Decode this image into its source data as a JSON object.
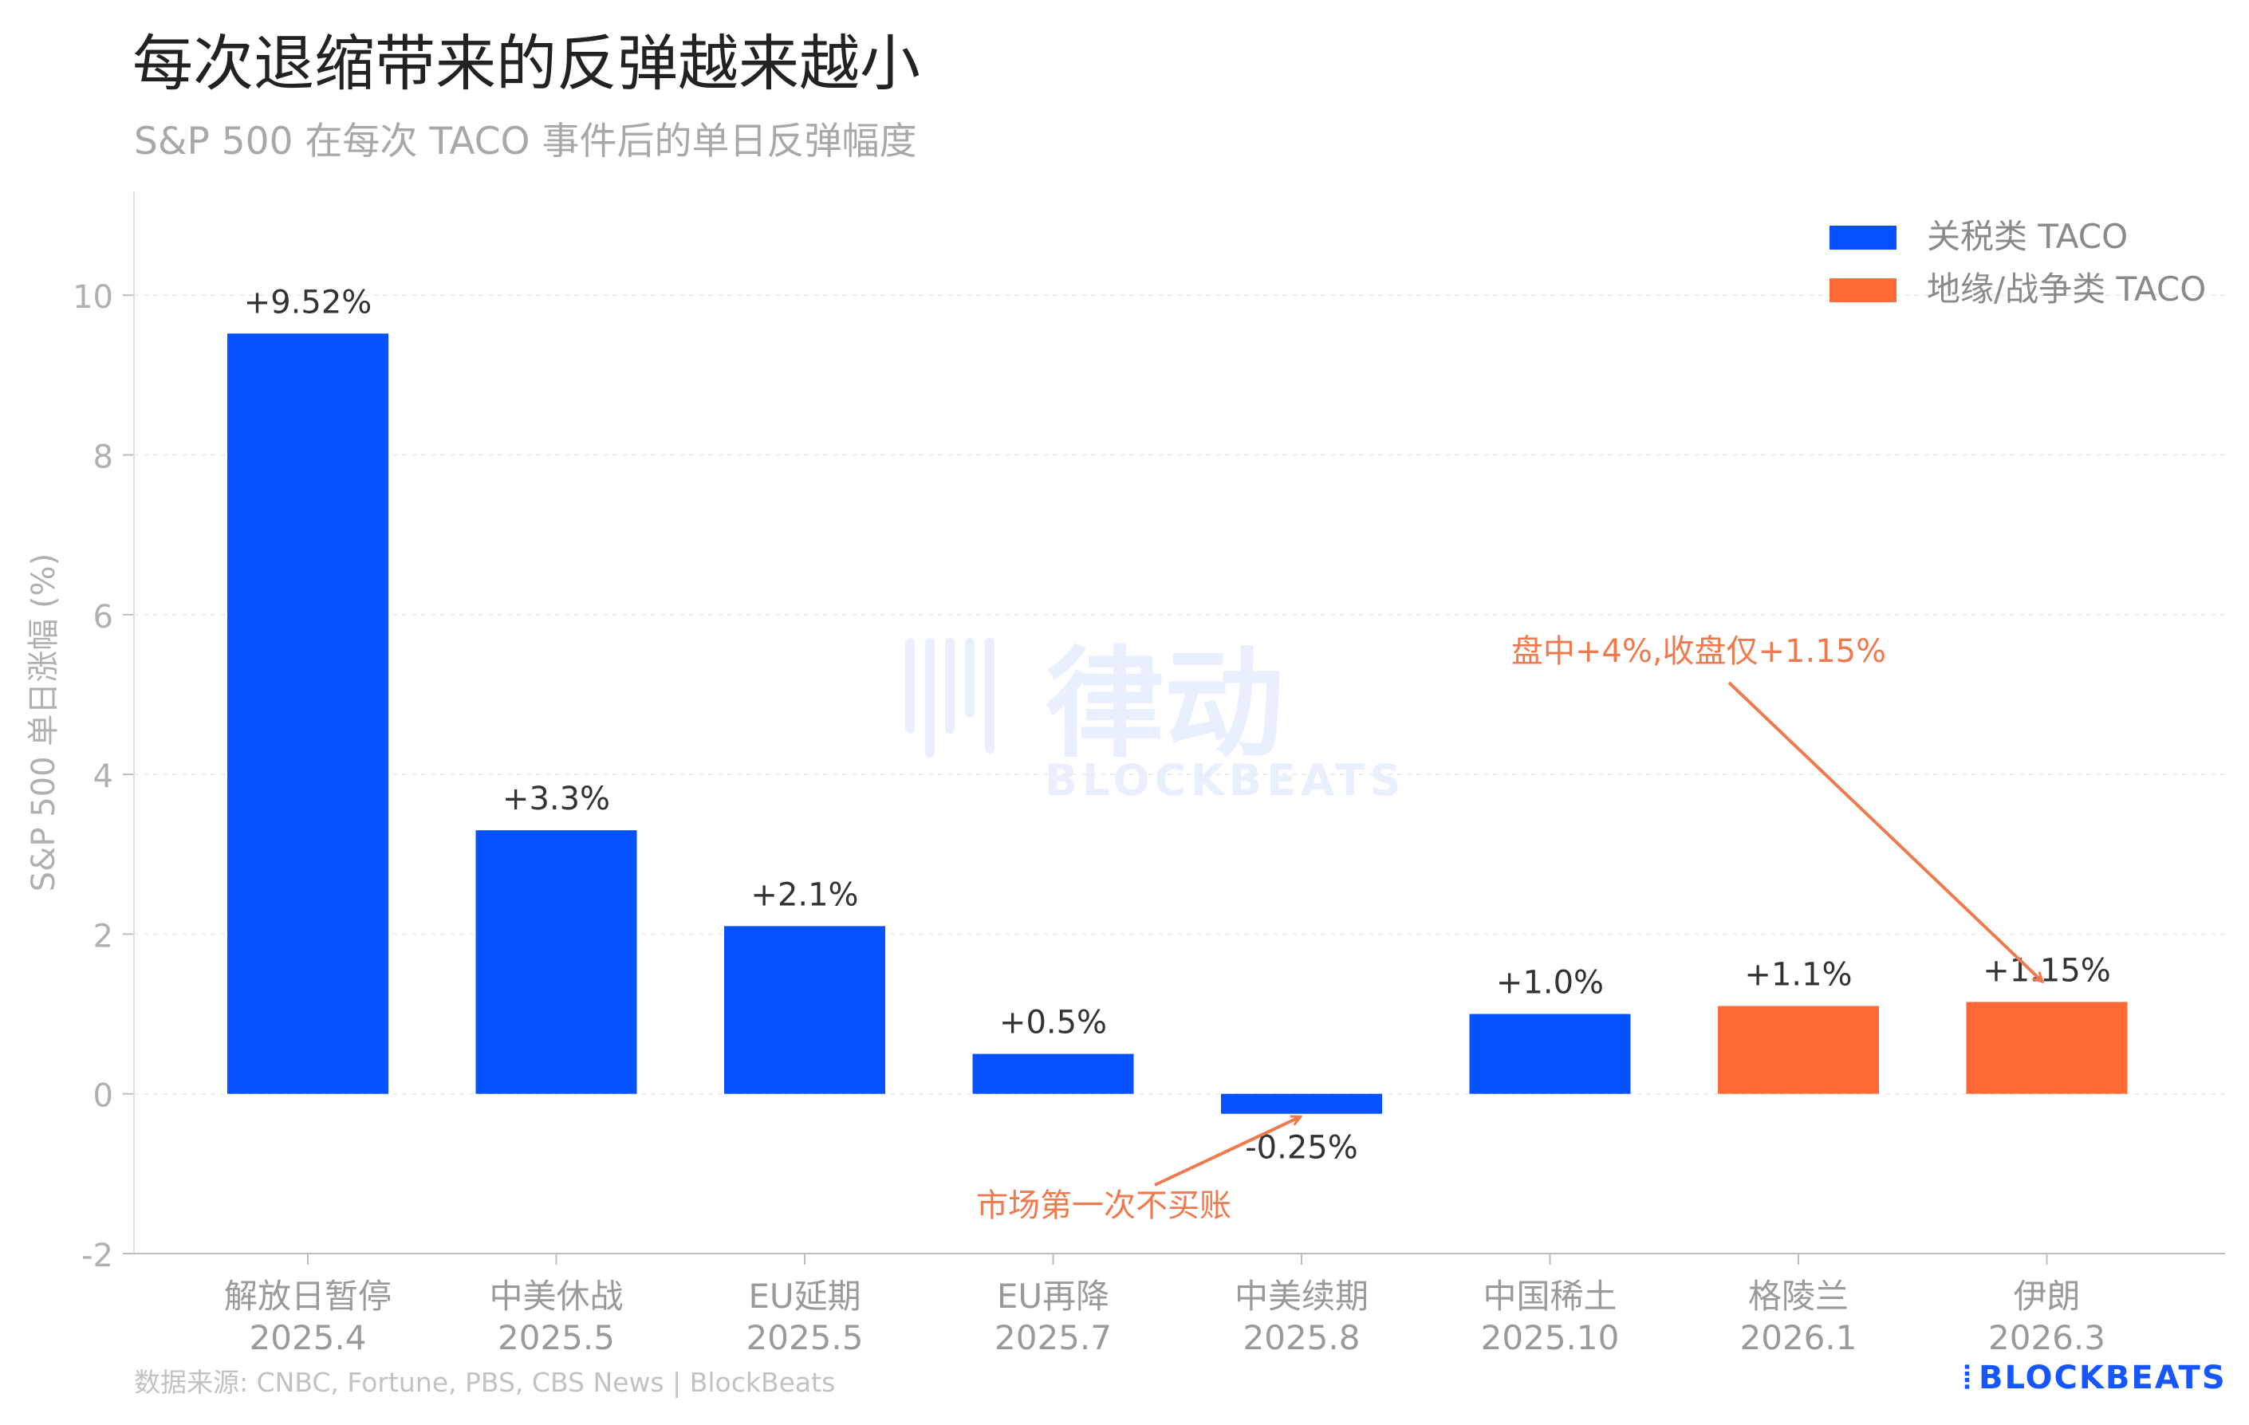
{
  "title": "每次退缩带来的反弹越来越小",
  "subtitle": "S&P 500 在每次 TACO 事件后的单日反弹幅度",
  "source": "数据来源: CNBC, Fortune, PBS, CBS News | BlockBeats",
  "brand": "BLOCKBEATS",
  "watermark": {
    "cn": "律动",
    "en": "BLOCKBEATS"
  },
  "colors": {
    "tariff": "#0652ff",
    "geo": "#ff6a35",
    "annotation": "#ef7a4e",
    "axis": "#bdbdbd",
    "grid": "#ececec"
  },
  "chart_data": {
    "type": "bar",
    "ylabel": "S&P 500 单日涨幅 (%)",
    "ylim": [
      -2,
      11.3
    ],
    "yticks": [
      -2,
      0,
      2,
      4,
      6,
      8,
      10
    ],
    "grid": true,
    "legend_position": "top-right",
    "series": [
      {
        "name": "关税类 TACO",
        "color": "#0652ff"
      },
      {
        "name": "地缘/战争类 TACO",
        "color": "#ff6a35"
      }
    ],
    "categories": [
      [
        "解放日暂停",
        "2025.4"
      ],
      [
        "中美休战",
        "2025.5"
      ],
      [
        "EU延期",
        "2025.5"
      ],
      [
        "EU再降",
        "2025.7"
      ],
      [
        "中美续期",
        "2025.8"
      ],
      [
        "中国稀土",
        "2025.10"
      ],
      [
        "格陵兰",
        "2026.1"
      ],
      [
        "伊朗",
        "2026.3"
      ]
    ],
    "values": [
      9.52,
      3.3,
      2.1,
      0.5,
      -0.25,
      1.0,
      1.1,
      1.15
    ],
    "value_labels": [
      "+9.52%",
      "+3.3%",
      "+2.1%",
      "+0.5%",
      "-0.25%",
      "+1.0%",
      "+1.1%",
      "+1.15%"
    ],
    "bar_series": [
      0,
      0,
      0,
      0,
      0,
      0,
      1,
      1
    ],
    "annotations": [
      {
        "text": "市场第一次不买账",
        "target_index": 4
      },
      {
        "text": "盘中+4%,收盘仅+1.15%",
        "target_index": 7
      }
    ]
  }
}
